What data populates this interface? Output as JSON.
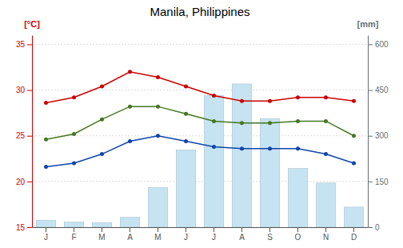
{
  "chart_data": {
    "type": "combo",
    "title": "Manila, Philippines",
    "y_label": "[°C]",
    "y2_label": "[mm]",
    "categories": [
      "J",
      "F",
      "M",
      "A",
      "M",
      "J",
      "J",
      "A",
      "S",
      "O",
      "N",
      "D"
    ],
    "ylim": [
      15,
      36
    ],
    "yticks": [
      15,
      20,
      25,
      30,
      35
    ],
    "y2lim": [
      0,
      630
    ],
    "y2ticks": [
      0,
      150,
      300,
      450,
      600
    ],
    "grid": true,
    "series": [
      {
        "type": "bar",
        "axis": "y2",
        "color": "#c5e3f0",
        "values": [
          23,
          17,
          15,
          33,
          130,
          254,
          432,
          470,
          356,
          193,
          145,
          66
        ]
      },
      {
        "type": "line",
        "color": "#cc0000",
        "marker": "circle",
        "values": [
          28.6,
          29.2,
          30.4,
          32.0,
          31.4,
          30.4,
          29.4,
          28.8,
          28.8,
          29.2,
          29.2,
          28.8
        ]
      },
      {
        "type": "line",
        "color": "#447722",
        "marker": "circle",
        "values": [
          24.6,
          25.2,
          26.8,
          28.2,
          28.2,
          27.4,
          26.6,
          26.4,
          26.4,
          26.6,
          26.6,
          25.0
        ]
      },
      {
        "type": "line",
        "color": "#1144aa",
        "marker": "circle",
        "values": [
          21.6,
          22.0,
          23.0,
          24.4,
          25.0,
          24.4,
          23.8,
          23.6,
          23.6,
          23.6,
          23.0,
          22.0
        ]
      }
    ]
  }
}
